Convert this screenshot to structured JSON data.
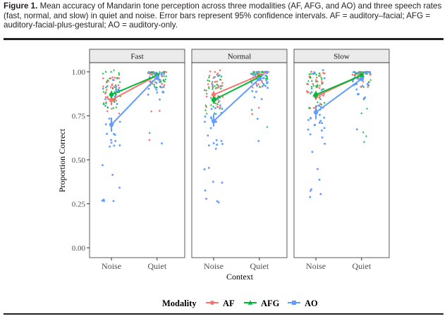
{
  "caption": {
    "label": "Figure 1.",
    "text": "Mean accuracy of Mandarin tone perception across three modalities (AF, AFG, and AO) and three speech rates (fast, normal, and slow) in quiet and noise. Error bars represent 95% confidence intervals. AF = auditory–facial; AFG = auditory-facial-plus-gestural; AO = auditory-only."
  },
  "colors": {
    "AF": "#F8766D",
    "AFG": "#00BA38",
    "AO": "#619CFF",
    "strip": "#EBEBEB",
    "axis": "#333333"
  },
  "chart_data": {
    "type": "line",
    "facets": [
      "Fast",
      "Normal",
      "Slow"
    ],
    "categories": [
      "Noise",
      "Quiet"
    ],
    "xlabel": "Context",
    "ylabel": "Proportion Correct",
    "ylim": [
      0,
      1
    ],
    "yticks": [
      "0.00",
      "0.25",
      "0.50",
      "0.75",
      "1.00"
    ],
    "grid": false,
    "legend": {
      "title": "Modality",
      "position": "bottom",
      "entries": [
        "AF",
        "AFG",
        "AO"
      ]
    },
    "series": [
      {
        "name": "AF",
        "facet": "Fast",
        "values": [
          0.84,
          0.98
        ],
        "ci": [
          [
            0.81,
            0.87
          ],
          [
            0.97,
            0.99
          ]
        ]
      },
      {
        "name": "AFG",
        "facet": "Fast",
        "values": [
          0.87,
          0.98
        ],
        "ci": [
          [
            0.85,
            0.89
          ],
          [
            0.97,
            0.99
          ]
        ]
      },
      {
        "name": "AO",
        "facet": "Fast",
        "values": [
          0.7,
          0.97
        ],
        "ci": [
          [
            0.66,
            0.74
          ],
          [
            0.96,
            0.98
          ]
        ]
      },
      {
        "name": "AF",
        "facet": "Normal",
        "values": [
          0.87,
          0.98
        ],
        "ci": [
          [
            0.85,
            0.89
          ],
          [
            0.97,
            0.99
          ]
        ]
      },
      {
        "name": "AFG",
        "facet": "Normal",
        "values": [
          0.84,
          0.97
        ],
        "ci": [
          [
            0.82,
            0.86
          ],
          [
            0.96,
            0.98
          ]
        ]
      },
      {
        "name": "AO",
        "facet": "Normal",
        "values": [
          0.72,
          0.96
        ],
        "ci": [
          [
            0.69,
            0.76
          ],
          [
            0.95,
            0.97
          ]
        ]
      },
      {
        "name": "AF",
        "facet": "Slow",
        "values": [
          0.86,
          0.98
        ],
        "ci": [
          [
            0.84,
            0.88
          ],
          [
            0.97,
            0.99
          ]
        ]
      },
      {
        "name": "AFG",
        "facet": "Slow",
        "values": [
          0.87,
          0.98
        ],
        "ci": [
          [
            0.85,
            0.89
          ],
          [
            0.97,
            0.99
          ]
        ]
      },
      {
        "name": "AO",
        "facet": "Slow",
        "values": [
          0.77,
          0.96
        ],
        "ci": [
          [
            0.73,
            0.81
          ],
          [
            0.95,
            0.97
          ]
        ]
      }
    ]
  }
}
